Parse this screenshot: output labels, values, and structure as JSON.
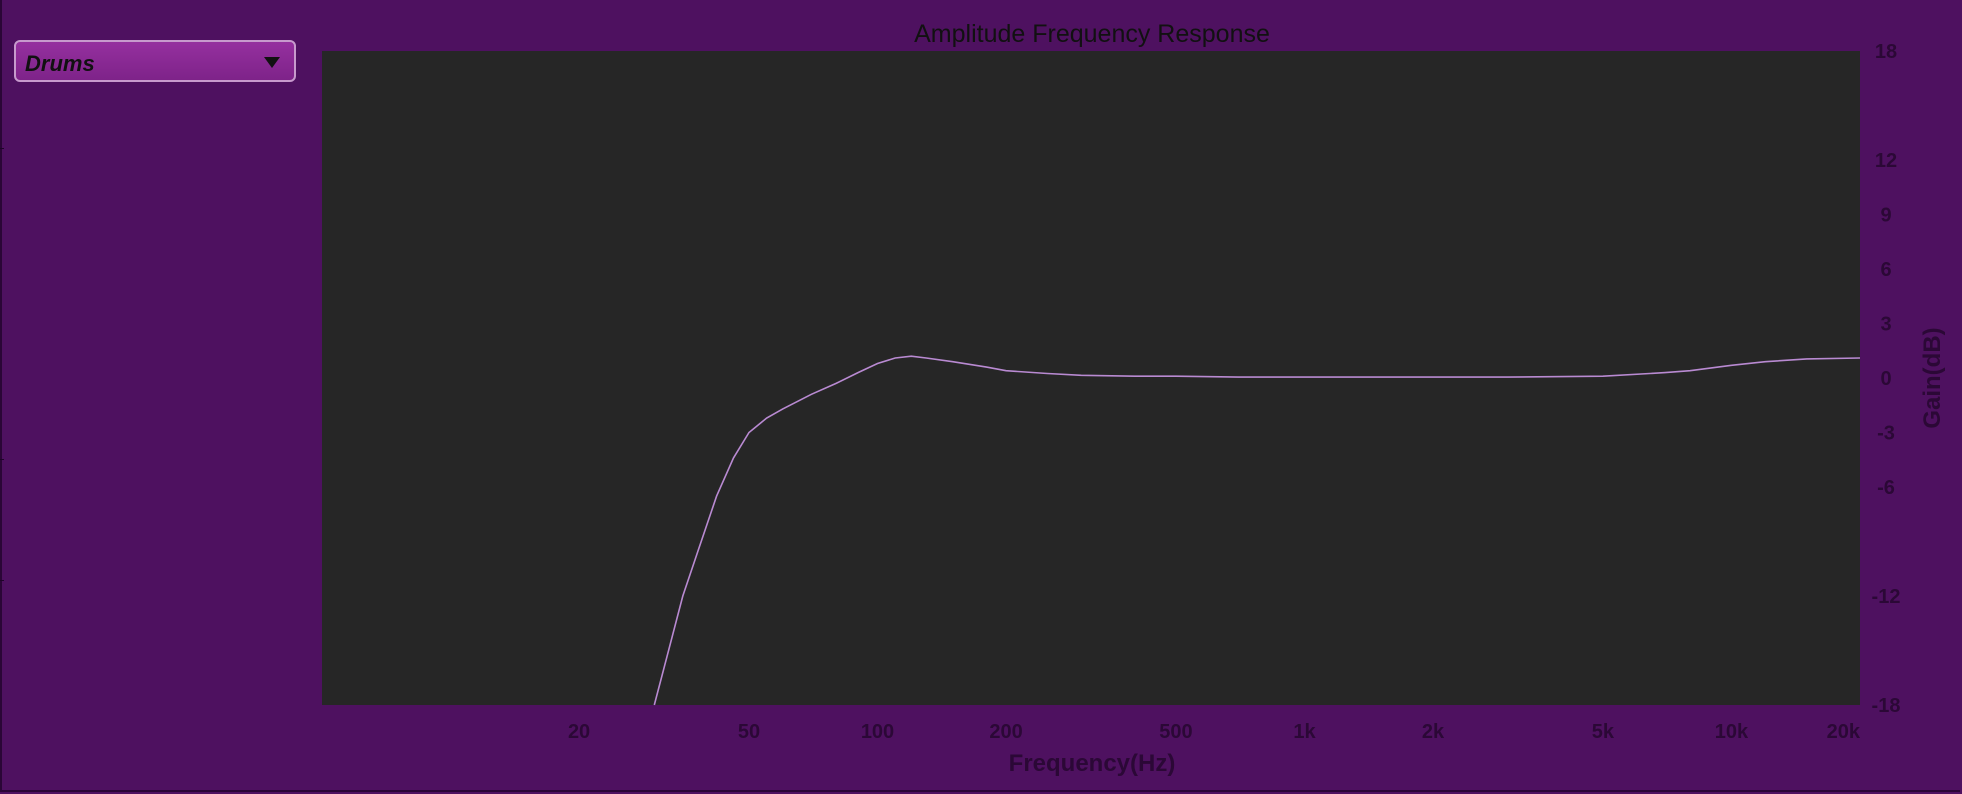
{
  "preset_selector": {
    "value": "Drums",
    "icon": "chevron-down-icon"
  },
  "colors": {
    "background": "#4e1160",
    "plot_background": "#262626",
    "curve": "#b98ad2",
    "dropdown": "#8c2b97"
  },
  "chart_data": {
    "type": "line",
    "title": "Amplitude Frequency Response",
    "xlabel": "Frequency(Hz)",
    "ylabel": "Gain(dB)",
    "x_scale": "log",
    "xlim": [
      5,
      20000
    ],
    "ylim": [
      -18,
      18
    ],
    "grid": false,
    "x_ticks": [
      {
        "value": 20,
        "label": "20"
      },
      {
        "value": 50,
        "label": "50"
      },
      {
        "value": 100,
        "label": "100"
      },
      {
        "value": 200,
        "label": "200"
      },
      {
        "value": 500,
        "label": "500"
      },
      {
        "value": 1000,
        "label": "1k"
      },
      {
        "value": 2000,
        "label": "2k"
      },
      {
        "value": 5000,
        "label": "5k"
      },
      {
        "value": 10000,
        "label": "10k"
      },
      {
        "value": 20000,
        "label": "20k"
      }
    ],
    "y_ticks": [
      {
        "value": 18,
        "label": "18"
      },
      {
        "value": 12,
        "label": "12"
      },
      {
        "value": 9,
        "label": "9"
      },
      {
        "value": 6,
        "label": "6"
      },
      {
        "value": 3,
        "label": "3"
      },
      {
        "value": 0,
        "label": "0"
      },
      {
        "value": -3,
        "label": "-3"
      },
      {
        "value": -6,
        "label": "-6"
      },
      {
        "value": -12,
        "label": "-12"
      },
      {
        "value": -18,
        "label": "-18"
      }
    ],
    "series": [
      {
        "x": [
          30,
          32,
          35,
          38,
          42,
          46,
          50,
          55,
          60,
          70,
          80,
          90,
          100,
          110,
          120,
          130,
          150,
          180,
          200,
          250,
          300,
          400,
          500,
          700,
          1000,
          2000,
          3000,
          5000,
          7000,
          8000,
          10000,
          12000,
          15000,
          20000
        ],
        "y": [
          -18,
          -15.5,
          -12,
          -9.5,
          -6.5,
          -4.4,
          -3,
          -2.2,
          -1.7,
          -0.9,
          -0.3,
          0.3,
          0.8,
          1.1,
          1.2,
          1.1,
          0.9,
          0.6,
          0.4,
          0.25,
          0.15,
          0.1,
          0.1,
          0.05,
          0.05,
          0.05,
          0.05,
          0.1,
          0.3,
          0.4,
          0.7,
          0.9,
          1.05,
          1.1
        ]
      }
    ]
  }
}
